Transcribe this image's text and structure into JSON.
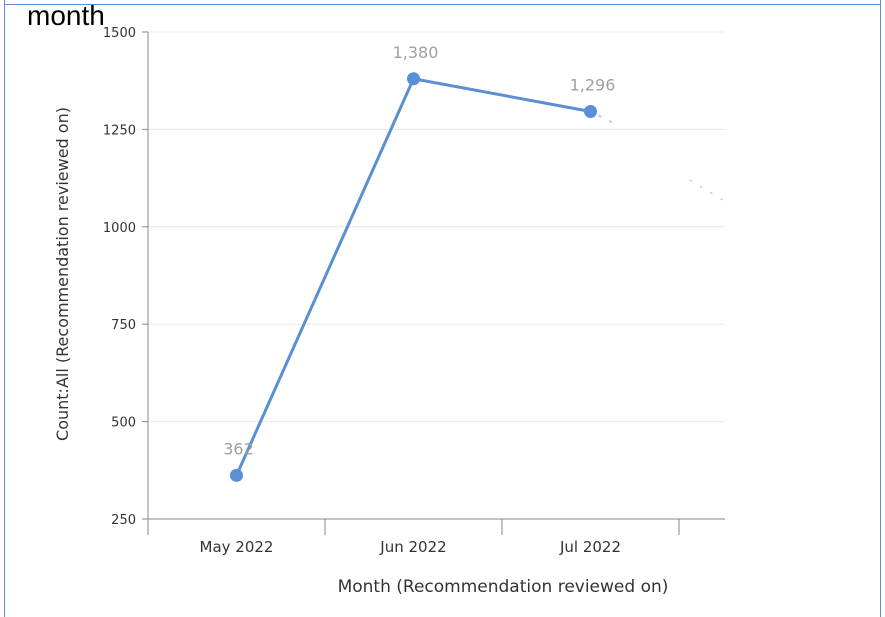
{
  "caption": "month",
  "chart_data": {
    "type": "line",
    "categories": [
      "May 2022",
      "Jun 2022",
      "Jul 2022"
    ],
    "values": [
      362,
      1380,
      1296
    ],
    "data_labels": [
      "362",
      "1,380",
      "1,296"
    ],
    "yticks": [
      250,
      500,
      750,
      1000,
      1250,
      1500
    ],
    "ytick_labels": [
      "250",
      "500",
      "750",
      "1000",
      "1250",
      "1500"
    ],
    "ylim": [
      250,
      1500
    ],
    "xlabel": "Month (Recommendation reviewed on)",
    "ylabel": "Count:All (Recommendation reviewed on)",
    "grid": true,
    "line_color": "#5b8fd4",
    "label_color": "#a0a0a0"
  }
}
